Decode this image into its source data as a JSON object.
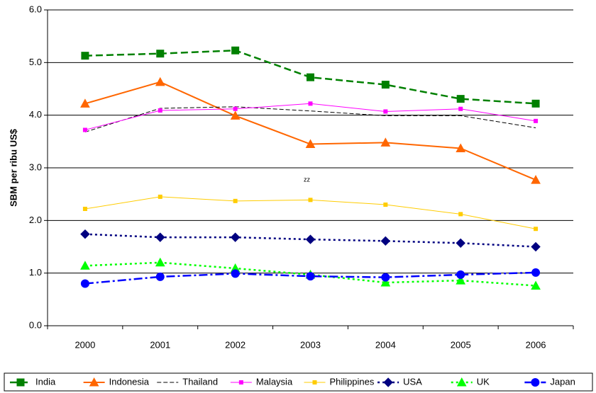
{
  "chart_data": {
    "type": "line",
    "y_label": "SBM per ribu US$",
    "annotations": [
      "zz"
    ],
    "categories": [
      "2000",
      "2001",
      "2002",
      "2003",
      "2004",
      "2005",
      "2006"
    ],
    "ylim": [
      0,
      6
    ],
    "yticks": [
      {
        "value": 0,
        "label": "0.0"
      },
      {
        "value": 1,
        "label": "1.0"
      },
      {
        "value": 2,
        "label": "2.0"
      },
      {
        "value": 3,
        "label": "3.0"
      },
      {
        "value": 4,
        "label": "4.0"
      },
      {
        "value": 5,
        "label": "5.0"
      },
      {
        "value": 6,
        "label": "6.0"
      }
    ],
    "grid": true,
    "legend": "bottom",
    "series": [
      {
        "name": "India",
        "color": "#008000",
        "dash": "10 5",
        "marker": "square",
        "width": 2.5,
        "values": [
          5.13,
          5.17,
          5.23,
          4.72,
          4.58,
          4.31,
          4.22
        ]
      },
      {
        "name": "Indonesia",
        "color": "#ff6600",
        "dash": "none",
        "marker": "triangle",
        "width": 2,
        "values": [
          4.22,
          4.63,
          3.99,
          3.45,
          3.48,
          3.37,
          2.77
        ]
      },
      {
        "name": "Thailand",
        "color": "#000000",
        "dash": "6 3",
        "marker": "none",
        "width": 1,
        "values": [
          3.68,
          4.13,
          4.16,
          4.08,
          3.99,
          3.99,
          3.76
        ]
      },
      {
        "name": "Malaysia",
        "color": "#ff00ff",
        "dash": "none",
        "marker": "small-square",
        "width": 1,
        "values": [
          3.72,
          4.09,
          4.12,
          4.22,
          4.07,
          4.12,
          3.89
        ]
      },
      {
        "name": "Philippines",
        "color": "#ffcc00",
        "dash": "none",
        "marker": "small-square",
        "width": 1,
        "values": [
          2.22,
          2.45,
          2.37,
          2.39,
          2.3,
          2.12,
          1.84
        ]
      },
      {
        "name": "USA",
        "color": "#000080",
        "dash": "3 4",
        "marker": "diamond",
        "width": 2.5,
        "values": [
          1.74,
          1.68,
          1.68,
          1.64,
          1.61,
          1.57,
          1.5
        ]
      },
      {
        "name": "UK",
        "color": "#00ff00",
        "dash": "3 4",
        "marker": "triangle",
        "width": 2.5,
        "values": [
          1.14,
          1.2,
          1.09,
          0.97,
          0.82,
          0.86,
          0.76
        ]
      },
      {
        "name": "Japan",
        "color": "#0000ff",
        "dash": "12 4 3 4",
        "marker": "circle",
        "width": 2.5,
        "values": [
          0.8,
          0.93,
          0.99,
          0.94,
          0.92,
          0.97,
          1.01
        ]
      }
    ]
  }
}
